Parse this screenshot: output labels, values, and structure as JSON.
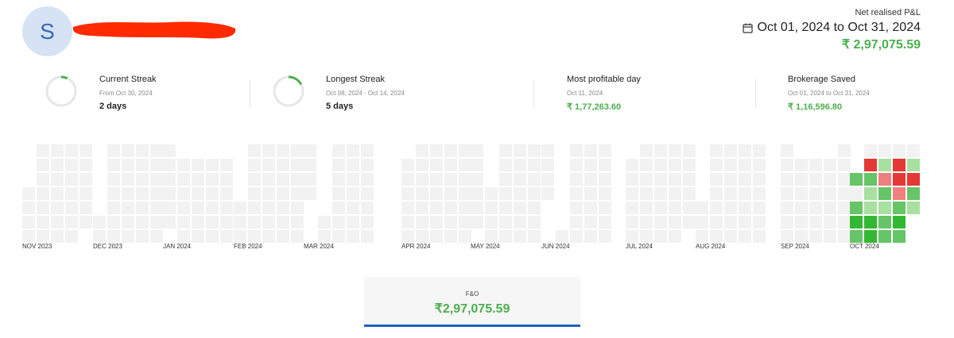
{
  "profile": {
    "initial": "S"
  },
  "pnl": {
    "label": "Net realised P&L",
    "range": "Oct 01, 2024 to Oct 31, 2024",
    "value": "₹ 2,97,075.59"
  },
  "stats": [
    {
      "title": "Current Streak",
      "sub": "From Oct 30, 2024",
      "value": "2 days",
      "ring_fraction": 0.07
    },
    {
      "title": "Longest Streak",
      "sub": "Oct 08, 2024 - Oct 14, 2024",
      "value": "5 days",
      "ring_fraction": 0.17
    },
    {
      "title": "Most profitable day",
      "sub": "Oct 11, 2024",
      "value": "₹ 1,77,263.60"
    },
    {
      "title": "Brokerage Saved",
      "sub": "Oct 01, 2024 to Oct 31, 2024",
      "value": "₹ 1,16,596.80"
    }
  ],
  "heatmap": {
    "months": [
      "NOV 2023",
      "DEC 2023",
      "JAN 2024",
      "FEB 2024",
      "MAR 2024",
      "APR 2024",
      "MAY 2024",
      "JUN 2024",
      "JUL 2024",
      "AUG 2024",
      "SEP 2024",
      "OCT 2024"
    ],
    "colors": {
      "empty": "#f2f2f2",
      "strong_loss": "#e53935",
      "loss": "#f08080",
      "light_profit": "#a8e0a0",
      "profit": "#66c566",
      "strong_profit": "#33b833"
    }
  },
  "segment": {
    "label": "F&O",
    "value": "₹2,97,075.59"
  }
}
